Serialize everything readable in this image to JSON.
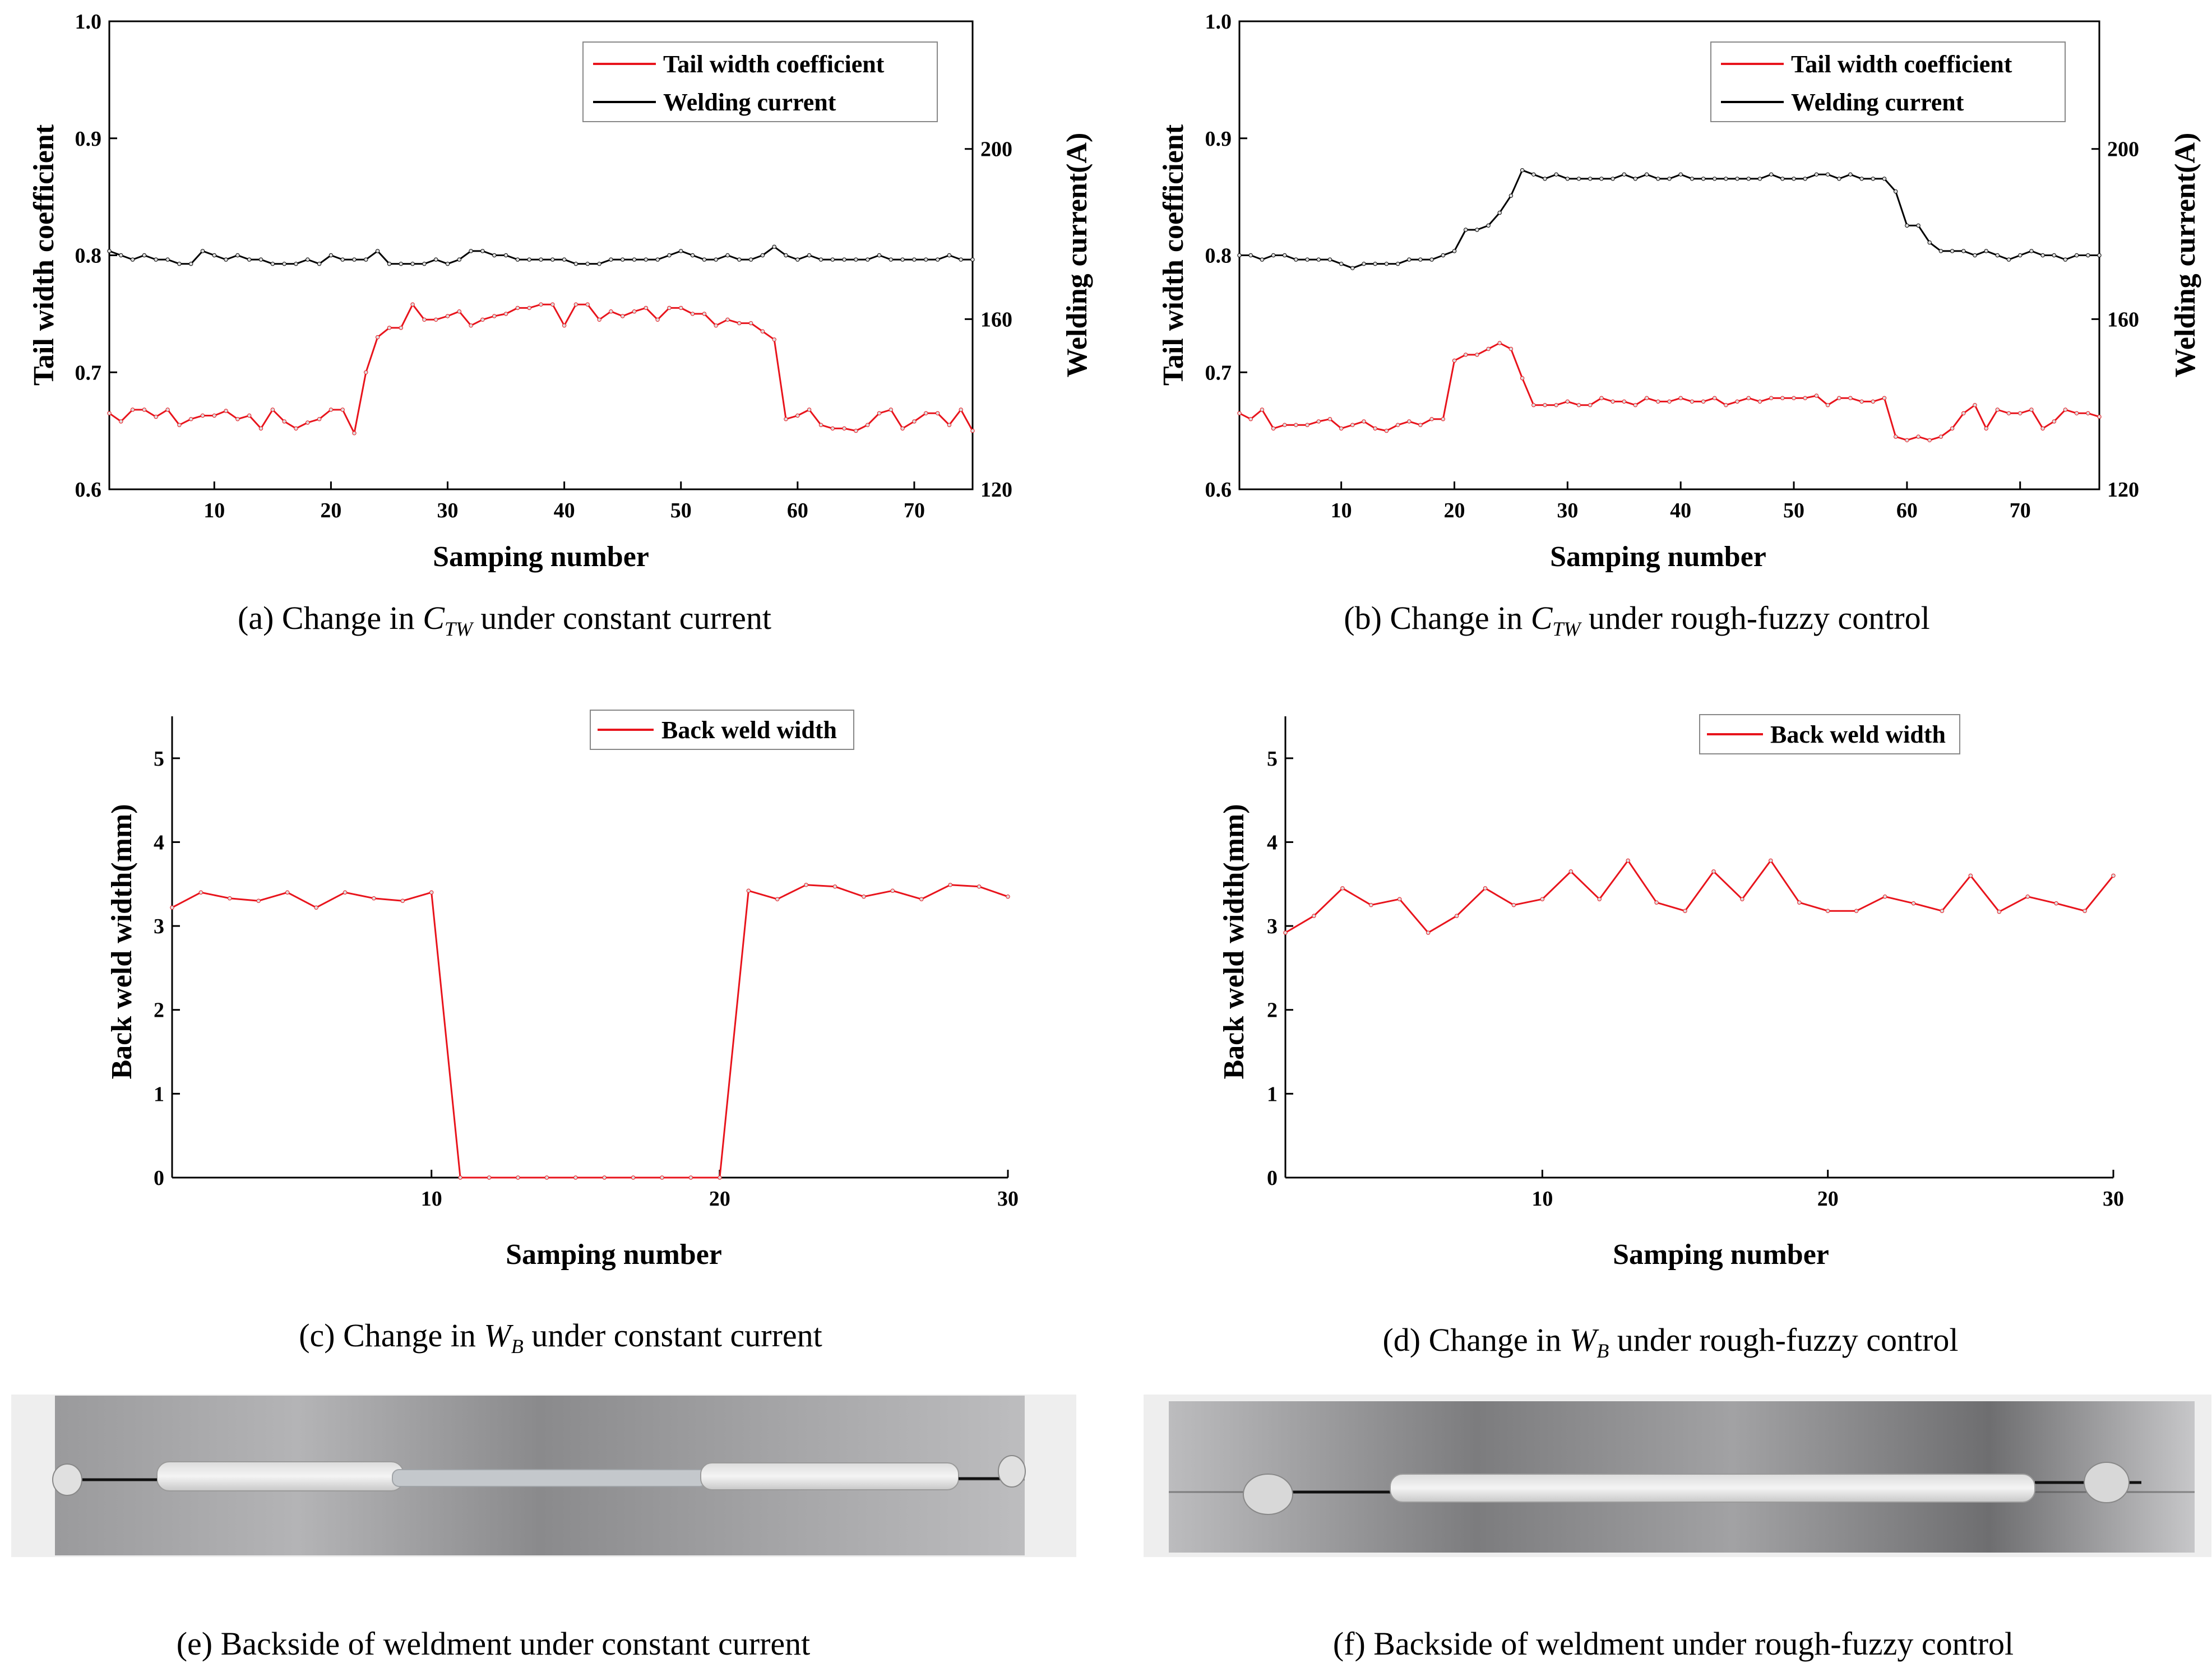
{
  "chart_data": [
    {
      "type": "line",
      "panel": "(a)",
      "caption": {
        "prefix": "(a)  Change in  ",
        "var": "C",
        "sub": "TW",
        "suffix": "  under constant current"
      },
      "xlabel": "Samping number",
      "ylabel": "Tail width coefficient",
      "y2label": "Welding current(A)",
      "xlim": [
        1,
        75
      ],
      "ylim": [
        0.6,
        1.0
      ],
      "y2lim": [
        120,
        230
      ],
      "xticks": [
        10,
        20,
        30,
        40,
        50,
        60,
        70
      ],
      "yticks": [
        0.6,
        0.7,
        0.8,
        0.9,
        1.0
      ],
      "yticklabels": [
        "0.6",
        "0.7",
        "0.8",
        "0.9",
        "1.0"
      ],
      "y2ticks": [
        120,
        160,
        200
      ],
      "legend": "top-right",
      "series": [
        {
          "name": "Tail width coefficient",
          "axis": "left",
          "color": "#e8141c",
          "x_start": 1,
          "values": [
            0.665,
            0.658,
            0.668,
            0.668,
            0.662,
            0.668,
            0.655,
            0.66,
            0.663,
            0.663,
            0.667,
            0.66,
            0.663,
            0.652,
            0.668,
            0.658,
            0.652,
            0.657,
            0.66,
            0.668,
            0.668,
            0.648,
            0.7,
            0.73,
            0.738,
            0.738,
            0.758,
            0.745,
            0.745,
            0.748,
            0.752,
            0.74,
            0.745,
            0.748,
            0.75,
            0.755,
            0.755,
            0.758,
            0.758,
            0.74,
            0.758,
            0.758,
            0.745,
            0.752,
            0.748,
            0.752,
            0.755,
            0.745,
            0.755,
            0.755,
            0.75,
            0.75,
            0.74,
            0.745,
            0.742,
            0.742,
            0.735,
            0.728,
            0.66,
            0.663,
            0.668,
            0.655,
            0.652,
            0.652,
            0.65,
            0.655,
            0.665,
            0.668,
            0.652,
            0.658,
            0.665,
            0.665,
            0.655,
            0.668,
            0.65
          ]
        },
        {
          "name": "Welding current",
          "axis": "right",
          "color": "#000000",
          "x_start": 1,
          "values": [
            176,
            175,
            174,
            175,
            174,
            174,
            173,
            173,
            176,
            175,
            174,
            175,
            174,
            174,
            173,
            173,
            173,
            174,
            173,
            175,
            174,
            174,
            174,
            176,
            173,
            173,
            173,
            173,
            174,
            173,
            174,
            176,
            176,
            175,
            175,
            174,
            174,
            174,
            174,
            174,
            173,
            173,
            173,
            174,
            174,
            174,
            174,
            174,
            175,
            176,
            175,
            174,
            174,
            175,
            174,
            174,
            175,
            177,
            175,
            174,
            175,
            174,
            174,
            174,
            174,
            174,
            175,
            174,
            174,
            174,
            174,
            174,
            175,
            174,
            174
          ]
        }
      ]
    },
    {
      "type": "line",
      "panel": "(b)",
      "caption": {
        "prefix": "(b)  Change in  ",
        "var": "C",
        "sub": "TW",
        "suffix": "  under rough-fuzzy control"
      },
      "xlabel": "Samping number",
      "ylabel": "Tail width coefficient",
      "y2label": "Welding current(A)",
      "xlim": [
        1,
        77
      ],
      "ylim": [
        0.6,
        1.0
      ],
      "y2lim": [
        120,
        230
      ],
      "xticks": [
        10,
        20,
        30,
        40,
        50,
        60,
        70
      ],
      "yticks": [
        0.6,
        0.7,
        0.8,
        0.9,
        1.0
      ],
      "yticklabels": [
        "0.6",
        "0.7",
        "0.8",
        "0.9",
        "1.0"
      ],
      "y2ticks": [
        120,
        160,
        200
      ],
      "legend": "top-right",
      "series": [
        {
          "name": "Tail width coefficient",
          "axis": "left",
          "color": "#e8141c",
          "x_start": 1,
          "values": [
            0.665,
            0.66,
            0.668,
            0.652,
            0.655,
            0.655,
            0.655,
            0.658,
            0.66,
            0.652,
            0.655,
            0.658,
            0.652,
            0.65,
            0.655,
            0.658,
            0.655,
            0.66,
            0.66,
            0.71,
            0.715,
            0.715,
            0.72,
            0.725,
            0.72,
            0.695,
            0.672,
            0.672,
            0.672,
            0.675,
            0.672,
            0.672,
            0.678,
            0.675,
            0.675,
            0.672,
            0.678,
            0.675,
            0.675,
            0.678,
            0.675,
            0.675,
            0.678,
            0.672,
            0.675,
            0.678,
            0.675,
            0.678,
            0.678,
            0.678,
            0.678,
            0.68,
            0.672,
            0.678,
            0.678,
            0.675,
            0.675,
            0.678,
            0.645,
            0.642,
            0.645,
            0.642,
            0.645,
            0.652,
            0.665,
            0.672,
            0.652,
            0.668,
            0.665,
            0.665,
            0.668,
            0.652,
            0.658,
            0.668,
            0.665,
            0.665,
            0.662
          ]
        },
        {
          "name": "Welding current",
          "axis": "right",
          "color": "#000000",
          "x_start": 1,
          "values": [
            175,
            175,
            174,
            175,
            175,
            174,
            174,
            174,
            174,
            173,
            172,
            173,
            173,
            173,
            173,
            174,
            174,
            174,
            175,
            176,
            181,
            181,
            182,
            185,
            189,
            195,
            194,
            193,
            194,
            193,
            193,
            193,
            193,
            193,
            194,
            193,
            194,
            193,
            193,
            194,
            193,
            193,
            193,
            193,
            193,
            193,
            193,
            194,
            193,
            193,
            193,
            194,
            194,
            193,
            194,
            193,
            193,
            193,
            190,
            182,
            182,
            178,
            176,
            176,
            176,
            175,
            176,
            175,
            174,
            175,
            176,
            175,
            175,
            174,
            175,
            175,
            175
          ]
        }
      ]
    },
    {
      "type": "line",
      "panel": "(c)",
      "caption": {
        "prefix": "(c)  Change in  ",
        "var": "W",
        "sub": "B",
        "suffix": "  under constant current"
      },
      "xlabel": "Samping number",
      "ylabel": "Back weld width(mm)",
      "xlim": [
        1,
        30
      ],
      "ylim": [
        0,
        5.5
      ],
      "xticks": [
        10,
        20,
        30
      ],
      "yticks": [
        0,
        1,
        2,
        3,
        4,
        5
      ],
      "yticklabels": [
        "0",
        "1",
        "2",
        "3",
        "4",
        "5"
      ],
      "legend": "top-center",
      "series": [
        {
          "name": "Back weld width",
          "axis": "left",
          "color": "#e8141c",
          "x": [
            1,
            2,
            3,
            4,
            5,
            6,
            7,
            8,
            9,
            10,
            11,
            12,
            13,
            14,
            15,
            16,
            17,
            18,
            19,
            20,
            21,
            22,
            23,
            24,
            25,
            26,
            27,
            28,
            29,
            30
          ],
          "values": [
            3.22,
            3.4,
            3.33,
            3.3,
            3.4,
            3.22,
            3.4,
            3.33,
            3.3,
            3.4,
            0,
            0,
            0,
            0,
            0,
            0,
            0,
            0,
            0,
            0,
            3.42,
            3.32,
            3.49,
            3.47,
            3.35,
            3.42,
            3.32,
            3.49,
            3.47,
            3.35
          ]
        }
      ]
    },
    {
      "type": "line",
      "panel": "(d)",
      "caption": {
        "prefix": "(d)  Change in  ",
        "var": "W",
        "sub": "B",
        "suffix": "  under rough-fuzzy control"
      },
      "xlabel": "Samping number",
      "ylabel": "Back weld width(mm)",
      "xlim": [
        1,
        30
      ],
      "ylim": [
        0,
        5.5
      ],
      "xticks": [
        10,
        20,
        30
      ],
      "yticks": [
        0,
        1,
        2,
        3,
        4,
        5
      ],
      "yticklabels": [
        "0",
        "1",
        "2",
        "3",
        "4",
        "5"
      ],
      "legend": "top-center",
      "series": [
        {
          "name": "Back weld width",
          "axis": "left",
          "color": "#e8141c",
          "x": [
            1,
            2,
            3,
            4,
            5,
            6,
            7,
            8,
            9,
            10,
            11,
            12,
            13,
            14,
            15,
            16,
            17,
            18,
            19,
            20,
            21,
            22,
            23,
            24,
            25,
            26,
            27,
            28,
            29,
            30
          ],
          "values": [
            2.92,
            3.12,
            3.45,
            3.25,
            3.32,
            2.92,
            3.12,
            3.45,
            3.25,
            3.32,
            3.65,
            3.32,
            3.78,
            3.28,
            3.18,
            3.65,
            3.32,
            3.78,
            3.28,
            3.18,
            3.18,
            3.35,
            3.27,
            3.18,
            3.6,
            3.17,
            3.35,
            3.27,
            3.18,
            3.6
          ]
        }
      ]
    }
  ],
  "photos": [
    {
      "panel": "(e)",
      "caption": "(e)  Backside of weldment under constant current"
    },
    {
      "panel": "(f)",
      "caption": "(f)  Backside of weldment under rough-fuzzy control"
    }
  ],
  "colors": {
    "red_series": "#e8141c",
    "black_series": "#000000",
    "plate_gray": "#8d8d8f"
  }
}
